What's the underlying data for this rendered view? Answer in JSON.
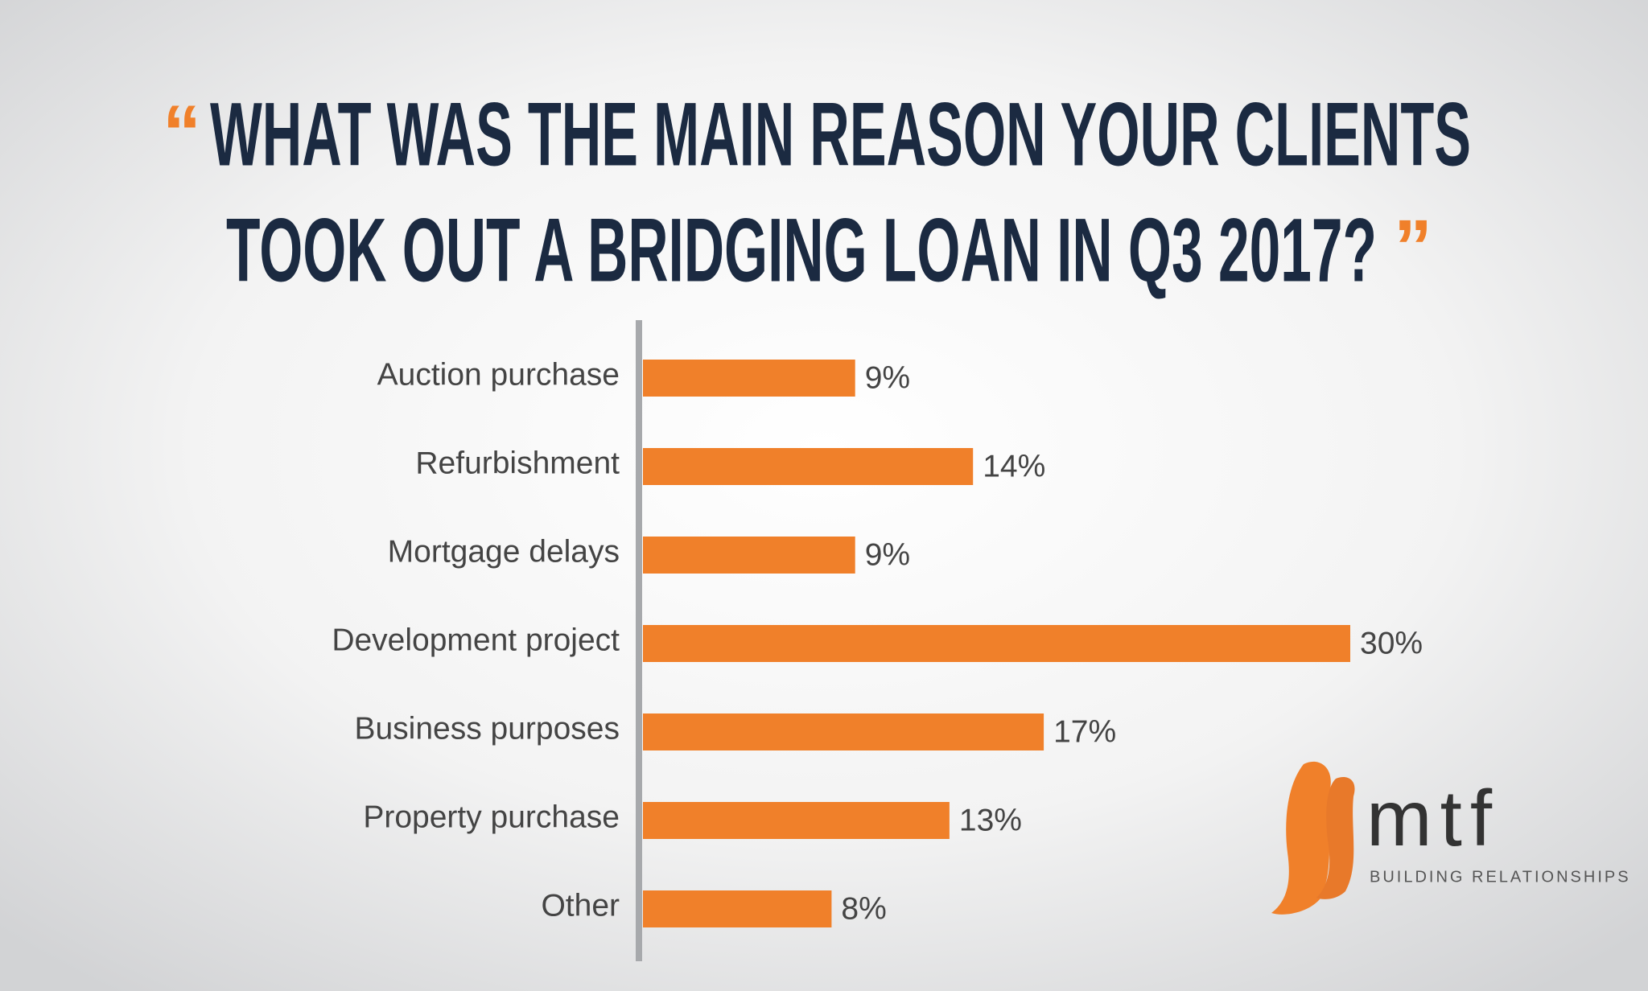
{
  "chart_data": {
    "type": "bar",
    "title_lines": [
      "WHAT WAS THE MAIN REASON YOUR CLIENTS",
      "TOOK OUT A BRIDGING LOAN IN Q3 2017?"
    ],
    "open_quote": "“",
    "close_quote": "”",
    "categories": [
      "Auction purchase",
      "Refurbishment",
      "Mortgage delays",
      "Development project",
      "Business purposes",
      "Property purchase",
      "Other"
    ],
    "values": [
      9,
      14,
      9,
      30,
      17,
      13,
      8
    ],
    "value_labels": [
      "9%",
      "14%",
      "9%",
      "30%",
      "17%",
      "13%",
      "8%"
    ],
    "color": "#f0802a",
    "orientation": "horizontal"
  },
  "logo": {
    "name": "mtf",
    "tagline": "BUILDING RELATIONSHIPS"
  }
}
